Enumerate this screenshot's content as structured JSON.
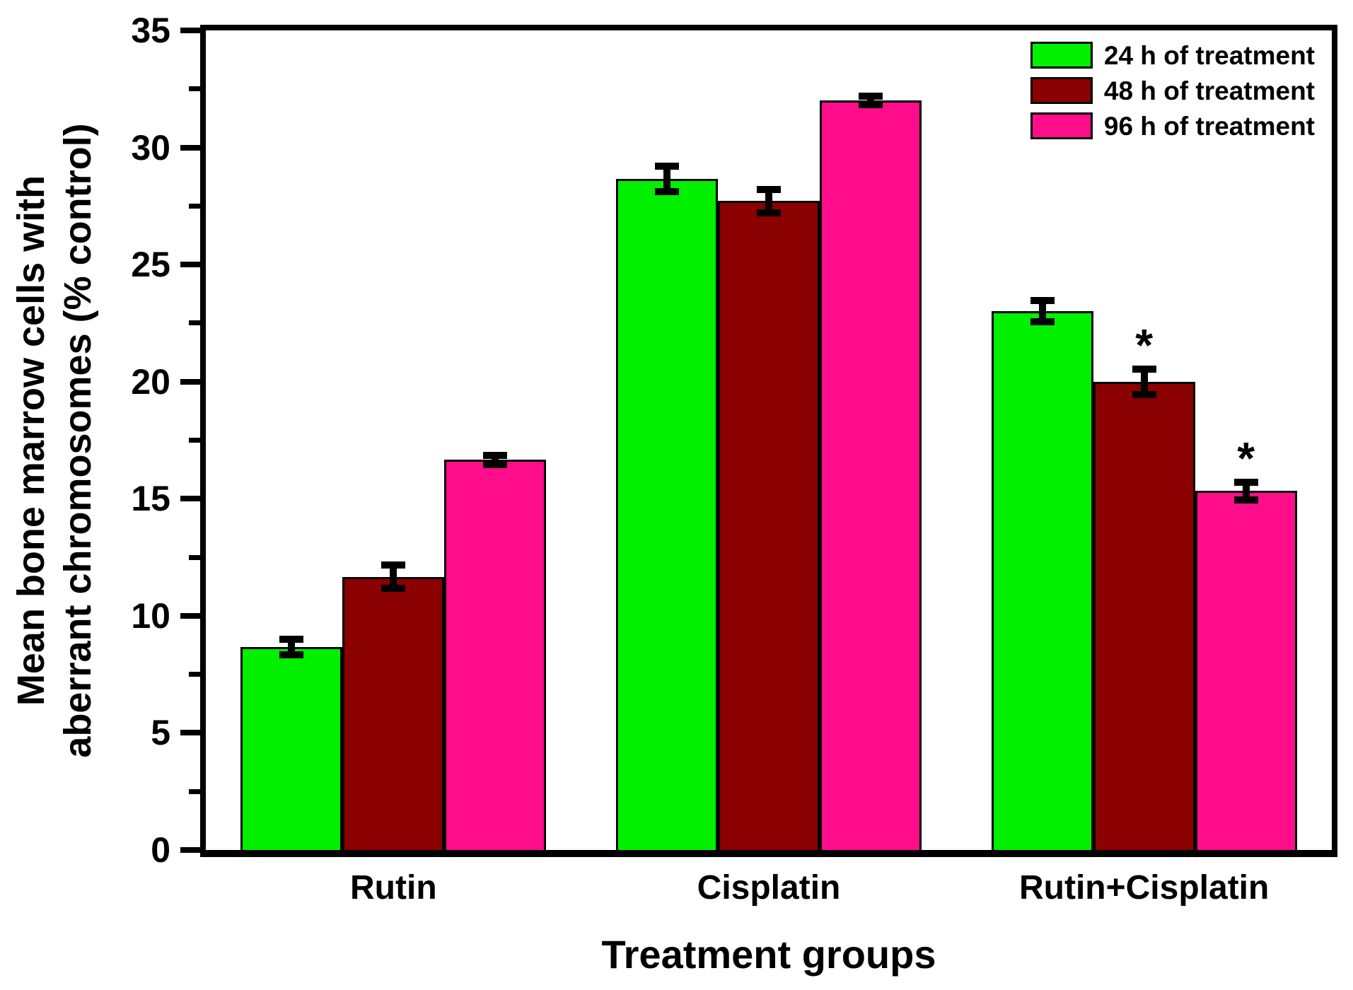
{
  "chart_data": {
    "type": "bar",
    "title": "",
    "xlabel": "Treatment groups",
    "ylabel": "Mean bone marrow cells with aberrant chromosomes (% control)",
    "ylabel_lines": [
      "Mean bone marrow cells with",
      "aberrant chromosomes (% control)"
    ],
    "ylim": [
      0,
      35
    ],
    "ytick_step": 5,
    "yminor_step": 2.5,
    "yticks": [
      0,
      5,
      10,
      15,
      20,
      25,
      30,
      35
    ],
    "grid": false,
    "legend_position": "top-right",
    "categories": [
      "Rutin",
      "Cisplatin",
      "Rutin+Cisplatin"
    ],
    "series": [
      {
        "name": "24 h of treatment",
        "color": "#00F000",
        "values": [
          8.66,
          28.66,
          23.0
        ],
        "errors": [
          0.33,
          0.55,
          0.45
        ],
        "significance": [
          "",
          "",
          ""
        ]
      },
      {
        "name": "48 h of treatment",
        "color": "#8B0000",
        "values": [
          11.66,
          27.72,
          20.0
        ],
        "errors": [
          0.5,
          0.5,
          0.55
        ],
        "significance": [
          "",
          "",
          "*"
        ]
      },
      {
        "name": "96 h of treatment",
        "color": "#FF0D8A",
        "values": [
          16.66,
          32.0,
          15.33
        ],
        "errors": [
          0.2,
          0.18,
          0.38
        ],
        "significance": [
          "",
          "",
          "*"
        ]
      }
    ],
    "colors": {
      "axis": "#000000",
      "text": "#000000",
      "background": "#FFFFFF",
      "error_bar": "#000000"
    }
  }
}
